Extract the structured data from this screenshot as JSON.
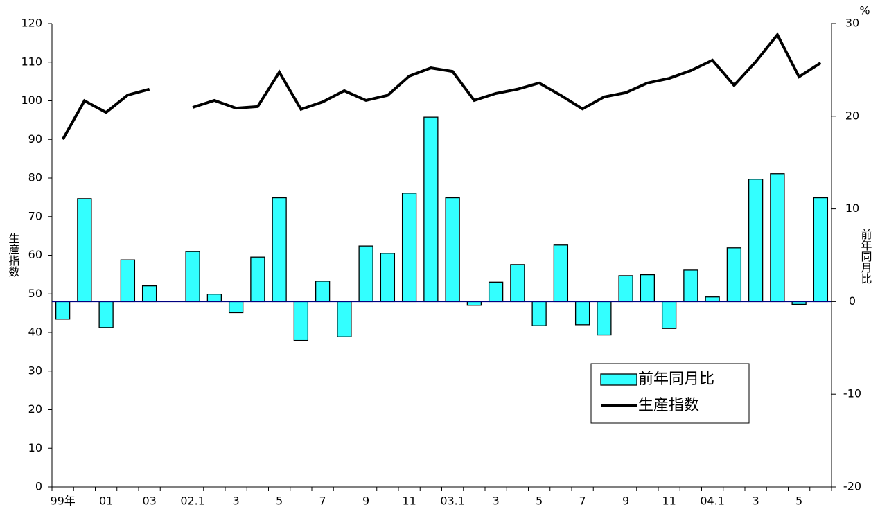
{
  "chart_data": {
    "type": "combo",
    "categories": [
      "99年",
      null,
      "01",
      null,
      "03",
      null,
      "02.1",
      null,
      "3",
      null,
      "5",
      null,
      "7",
      null,
      "9",
      null,
      "11",
      null,
      "03.1",
      null,
      "3",
      null,
      "5",
      null,
      "7",
      null,
      "9",
      null,
      "11",
      null,
      "04.1",
      null,
      "3",
      null,
      "5",
      null
    ],
    "series": [
      {
        "name": "前年同月比",
        "type": "bar",
        "axis": "y2",
        "color": "#33ffff",
        "values": [
          -1.9,
          11.1,
          -2.8,
          4.5,
          1.7,
          null,
          5.4,
          0.8,
          -1.2,
          4.8,
          11.2,
          -4.2,
          2.2,
          -3.8,
          6.0,
          5.2,
          11.7,
          19.9,
          11.2,
          -0.4,
          2.1,
          4.0,
          -2.6,
          6.1,
          -2.5,
          -3.6,
          2.8,
          2.9,
          -2.9,
          3.4,
          0.5,
          5.8,
          13.2,
          13.8,
          -0.3,
          11.2
        ]
      },
      {
        "name": "生産指数",
        "type": "line",
        "axis": "y",
        "color": "#000000",
        "values": [
          90,
          100,
          97,
          101.5,
          103,
          null,
          98.3,
          100.1,
          98.1,
          98.5,
          107.4,
          97.8,
          99.7,
          102.6,
          100.1,
          101.4,
          106.4,
          108.5,
          107.6,
          100.1,
          101.9,
          103,
          104.6,
          101.4,
          97.9,
          101,
          102.1,
          104.6,
          105.8,
          107.8,
          110.5,
          104,
          110.1,
          117.1,
          106.2,
          109.8
        ]
      }
    ],
    "y_label": "生産指数",
    "y2_label": "前年同月比",
    "y2_unit": "%",
    "ylim": [
      0,
      120
    ],
    "yticks": [
      0,
      10,
      20,
      30,
      40,
      50,
      60,
      70,
      80,
      90,
      100,
      110,
      120
    ],
    "y2lim": [
      -20,
      30
    ],
    "y2ticks": [
      -20,
      -10,
      0,
      10,
      20,
      30
    ],
    "grid": false,
    "legend": "lower right"
  }
}
